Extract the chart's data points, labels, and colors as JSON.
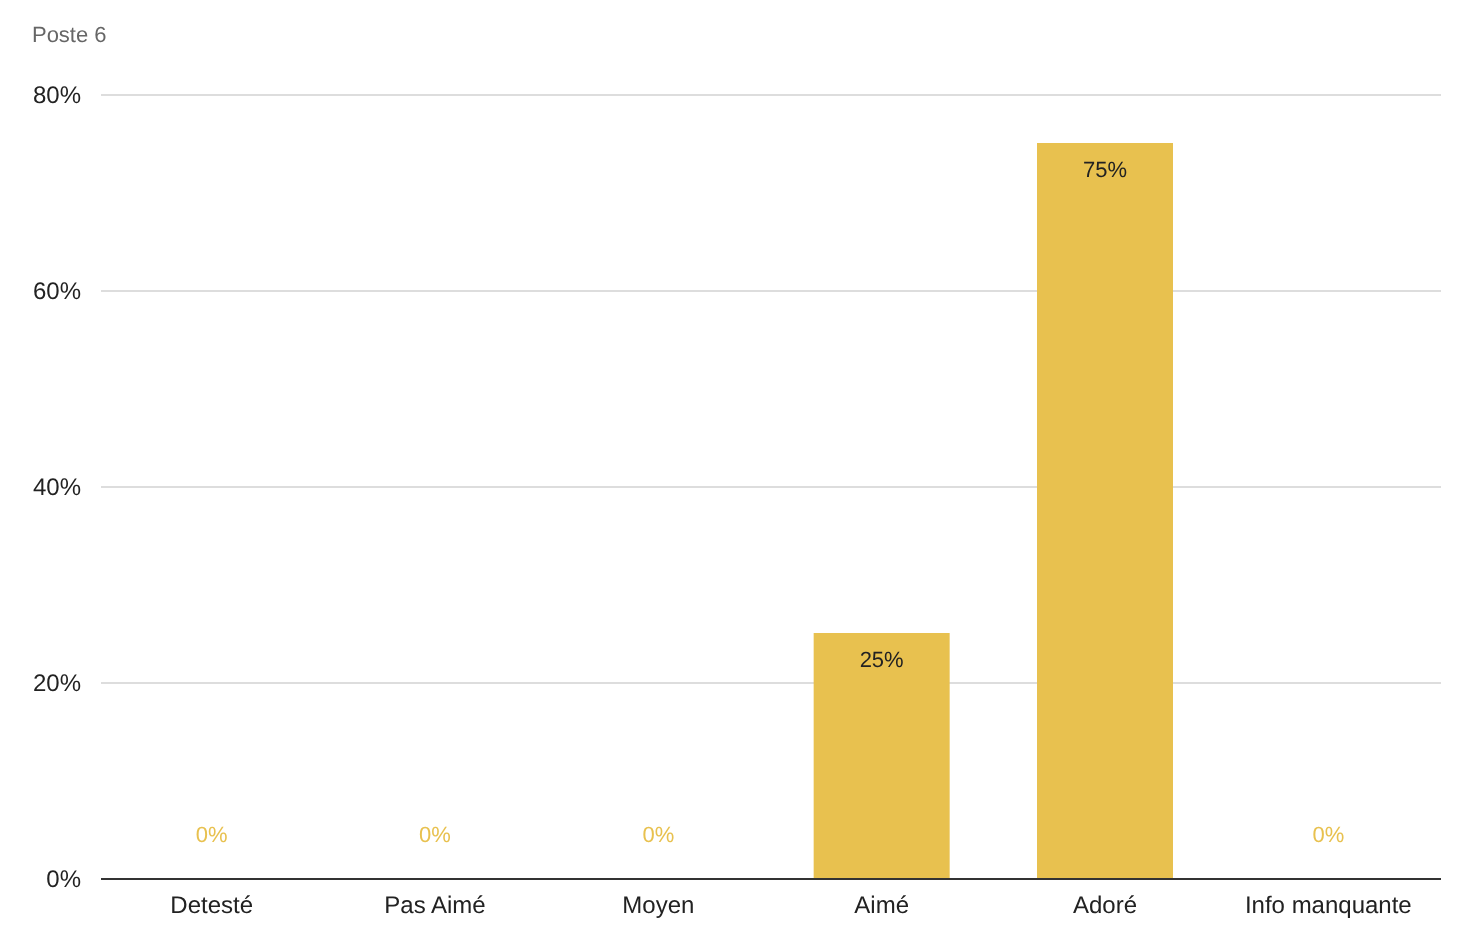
{
  "chart_data": {
    "type": "bar",
    "title": "Poste 6",
    "categories": [
      "Detesté",
      "Pas Aimé",
      "Moyen",
      "Aimé",
      "Adoré",
      "Info manquante"
    ],
    "values": [
      0,
      0,
      0,
      25,
      75,
      0
    ],
    "value_labels": [
      "0%",
      "0%",
      "0%",
      "25%",
      "75%",
      "0%"
    ],
    "color": "#e8c14f",
    "ylim": [
      0,
      80
    ],
    "yticks": [
      {
        "value": 0,
        "label": "0%"
      },
      {
        "value": 20,
        "label": "20%"
      },
      {
        "value": 40,
        "label": "40%"
      },
      {
        "value": 60,
        "label": "60%"
      },
      {
        "value": 80,
        "label": "80%"
      }
    ],
    "grid": "y"
  }
}
